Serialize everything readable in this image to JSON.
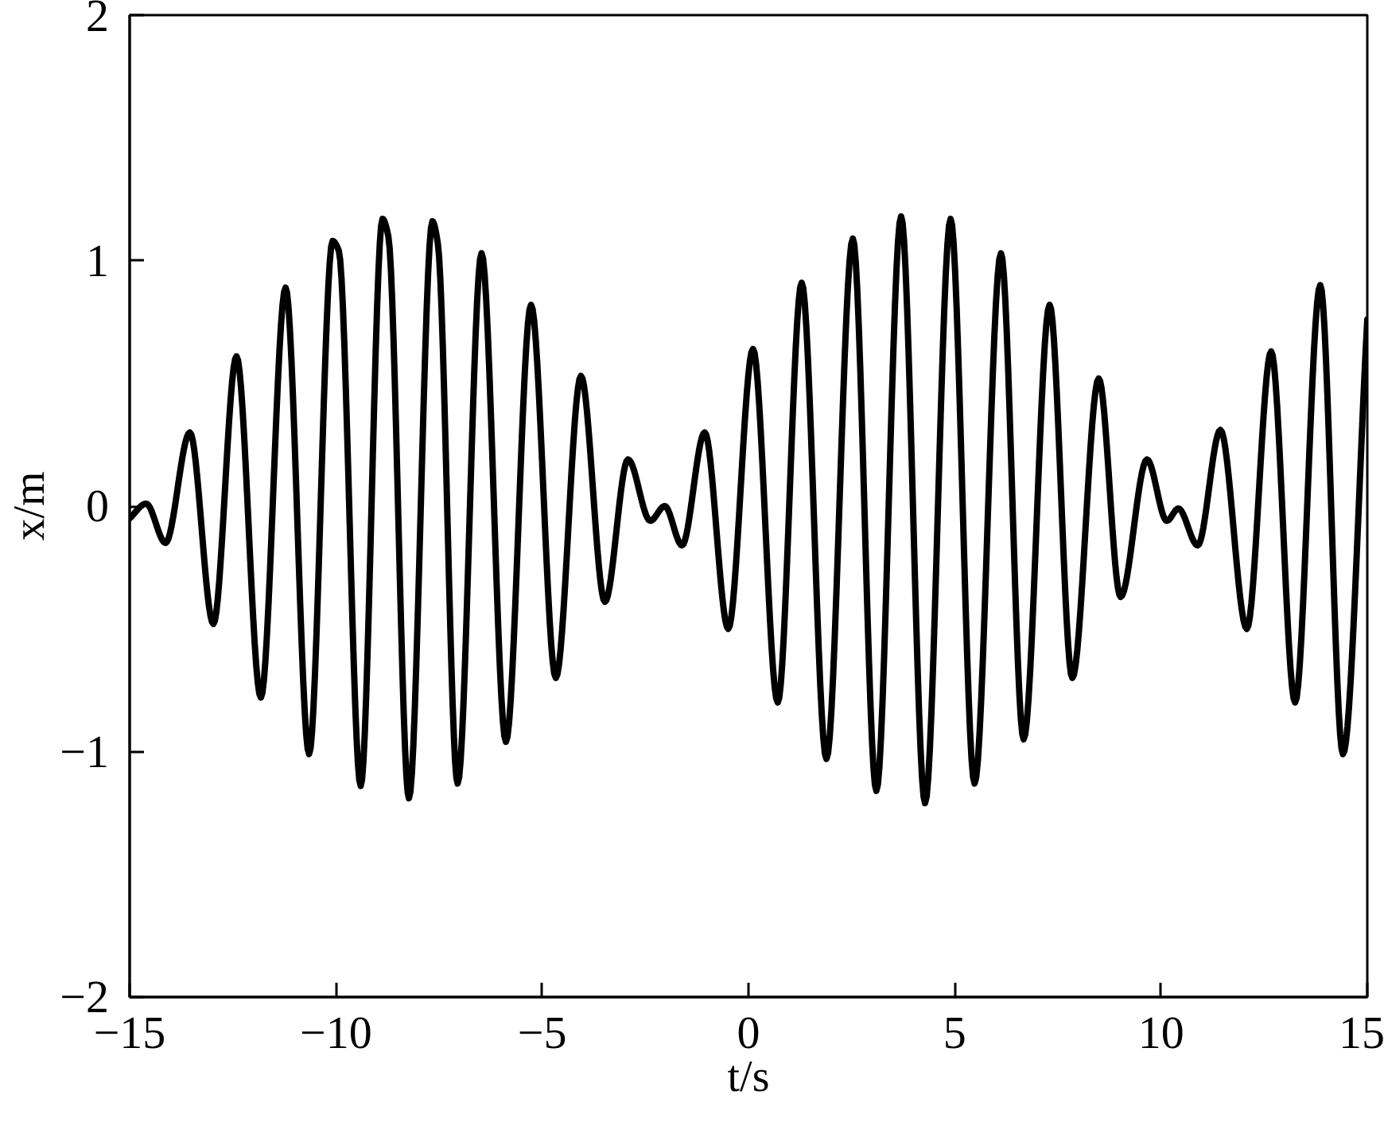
{
  "chart_data": {
    "type": "line",
    "xlabel": "t/s",
    "ylabel": "x/m",
    "color": "#000000",
    "line_style": "solid",
    "marker": "none",
    "grid": false,
    "x": [
      -15.0,
      -14.6,
      -14.13,
      -13.54,
      -12.97,
      -12.41,
      -11.82,
      -11.22,
      -10.65,
      -10.08,
      -9.93,
      -9.4,
      -8.87,
      -8.73,
      -8.23,
      -7.66,
      -7.53,
      -7.05,
      -6.47,
      -5.88,
      -5.27,
      -4.67,
      -4.06,
      -3.48,
      -2.92,
      -2.38,
      -2.03,
      -1.61,
      -1.06,
      -0.49,
      0.11,
      0.71,
      1.29,
      1.89,
      2.53,
      3.1,
      3.7,
      4.28,
      4.9,
      5.48,
      6.12,
      6.67,
      7.3,
      7.85,
      8.49,
      9.02,
      9.66,
      10.14,
      10.42,
      10.89,
      11.44,
      12.08,
      12.67,
      13.25,
      13.86,
      14.41,
      15.0
    ],
    "values": [
      -0.05,
      0.01,
      -0.15,
      0.3,
      -0.48,
      0.61,
      -0.78,
      0.89,
      -1.01,
      1.08,
      1.04,
      -1.14,
      1.17,
      1.1,
      -1.19,
      1.16,
      1.07,
      -1.13,
      1.03,
      -0.96,
      0.82,
      -0.7,
      0.53,
      -0.39,
      0.19,
      -0.06,
      0.0,
      -0.16,
      0.3,
      -0.5,
      0.64,
      -0.8,
      0.91,
      -1.03,
      1.09,
      -1.16,
      1.18,
      -1.21,
      1.17,
      -1.13,
      1.03,
      -0.95,
      0.82,
      -0.7,
      0.52,
      -0.37,
      0.19,
      -0.06,
      -0.01,
      -0.16,
      0.31,
      -0.5,
      0.63,
      -0.8,
      0.9,
      -1.01,
      0.76
    ],
    "xlim": [
      -15,
      15
    ],
    "ylim": [
      -2,
      2
    ],
    "xticks": [
      -15,
      -10,
      -5,
      0,
      5,
      10,
      15
    ],
    "yticks": [
      -2,
      -1,
      0,
      1,
      2
    ]
  }
}
